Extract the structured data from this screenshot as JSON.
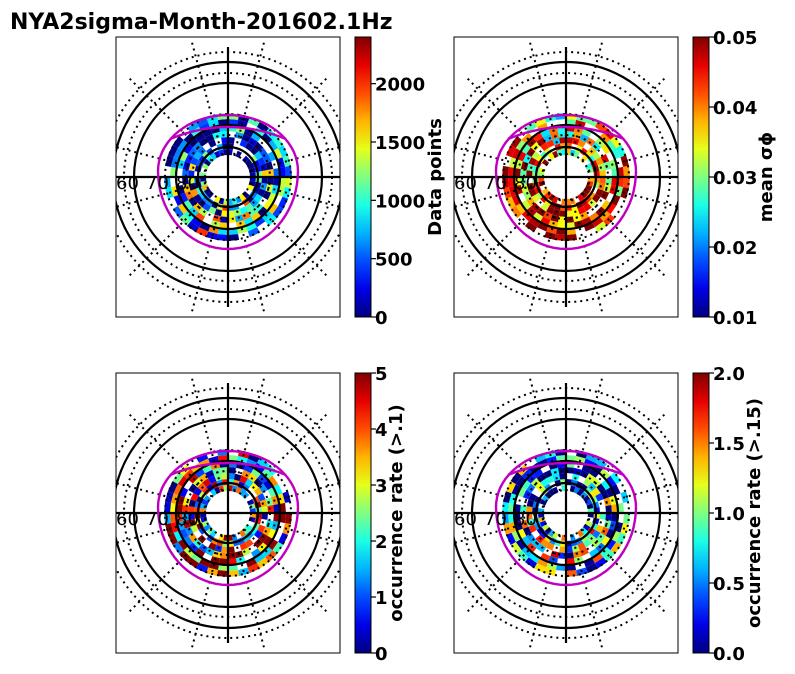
{
  "title": "NYA2sigma-Month-201602.1Hz",
  "chart_data": [
    {
      "type": "heatmap",
      "projection": "polar",
      "latitude_labels": [
        "60",
        "70",
        "80"
      ],
      "colorbar_label": "Data points",
      "colorbar_range": [
        0,
        2400
      ],
      "colorbar_ticks": [
        "0",
        "500",
        "1000",
        "1500",
        "2000"
      ],
      "colorbar_tick_values": [
        0,
        500,
        1000,
        1500,
        2000
      ],
      "colormap": "jet",
      "mean_level": 0.25,
      "spread": 0.45,
      "seed": 11
    },
    {
      "type": "heatmap",
      "projection": "polar",
      "latitude_labels": [
        "60",
        "70",
        "80"
      ],
      "colorbar_label": "mean σϕ",
      "colorbar_range": [
        0.01,
        0.05
      ],
      "colorbar_ticks": [
        "0.01",
        "0.02",
        "0.03",
        "0.04",
        "0.05"
      ],
      "colorbar_tick_values": [
        0.01,
        0.02,
        0.03,
        0.04,
        0.05
      ],
      "colormap": "jet",
      "mean_level": 0.78,
      "spread": 0.35,
      "seed": 23
    },
    {
      "type": "heatmap",
      "projection": "polar",
      "latitude_labels": [
        "60",
        "70",
        "80"
      ],
      "colorbar_label": "occurrence rate (>.1)",
      "colorbar_range": [
        0,
        5
      ],
      "colorbar_ticks": [
        "0",
        "1",
        "2",
        "3",
        "4",
        "5"
      ],
      "colorbar_tick_values": [
        0,
        1,
        2,
        3,
        4,
        5
      ],
      "colormap": "jet",
      "mean_level": 0.55,
      "spread": 0.55,
      "seed": 37
    },
    {
      "type": "heatmap",
      "projection": "polar",
      "latitude_labels": [
        "60",
        "70",
        "80"
      ],
      "colorbar_label": "occurrence rate (>.15)",
      "colorbar_range": [
        0.0,
        2.0
      ],
      "colorbar_ticks": [
        "0.0",
        "0.5",
        "1.0",
        "1.5",
        "2.0"
      ],
      "colorbar_tick_values": [
        0.0,
        0.5,
        1.0,
        1.5,
        2.0
      ],
      "colormap": "jet",
      "mean_level": 0.3,
      "spread": 0.5,
      "seed": 53
    }
  ],
  "colors": {
    "oval": "#c000c0",
    "grid": "#000000"
  }
}
